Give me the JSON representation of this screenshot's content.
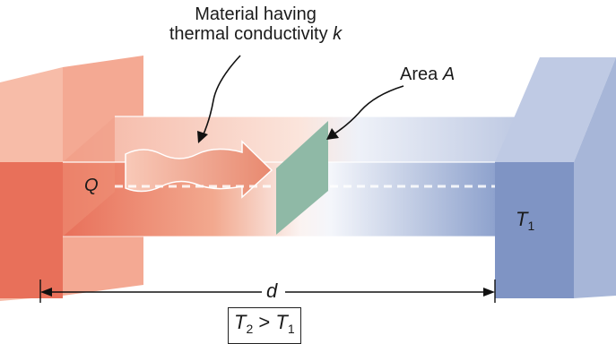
{
  "labels": {
    "material_line1": "Material having",
    "material_line2": "thermal conductivity",
    "material_symbol": "k",
    "area_word": "Area",
    "area_symbol": "A",
    "heat_symbol": "Q",
    "cold_symbol": "T",
    "cold_subscript": "1",
    "distance_symbol": "d"
  },
  "condition": {
    "left_symbol": "T",
    "left_subscript": "2",
    "operator": ">",
    "right_symbol": "T",
    "right_subscript": "1"
  },
  "colors": {
    "hot": "#e8705a",
    "cold": "#7f94c4",
    "area_slice": "#8fb9a6"
  }
}
